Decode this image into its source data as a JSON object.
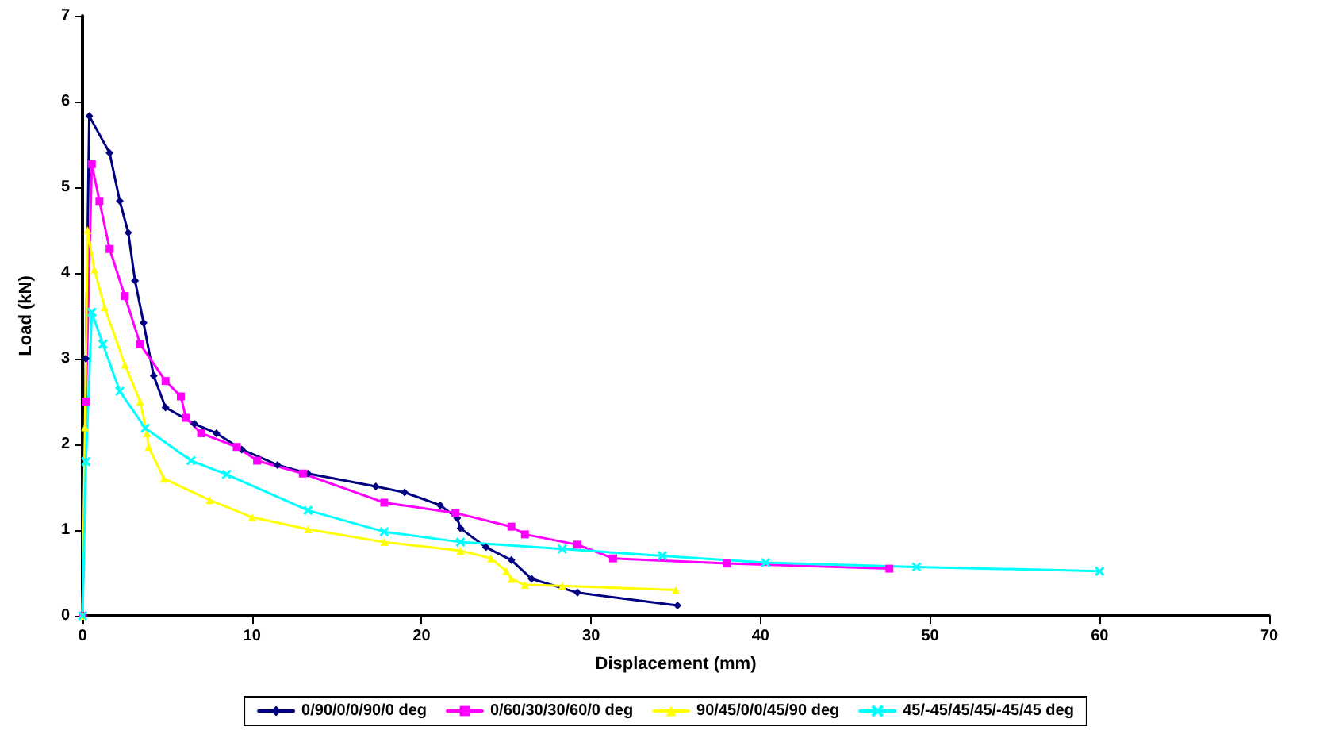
{
  "chart_data": {
    "type": "line",
    "xlabel": "Displacement (mm)",
    "ylabel": "Load (kN)",
    "xlim": [
      0,
      70
    ],
    "xticks": [
      0,
      10,
      20,
      30,
      40,
      50,
      60,
      70
    ],
    "ylim": [
      0,
      7
    ],
    "yticks": [
      0,
      1,
      2,
      3,
      4,
      5,
      6,
      7
    ],
    "grid": false,
    "legend": "bottom",
    "line_style": "solid",
    "series": [
      {
        "name": "0/90/0/0/90/0 deg",
        "color": "#000080",
        "marker": "diamond",
        "x": [
          0,
          0.2,
          0.4,
          1.6,
          2.2,
          2.7,
          3.1,
          3.6,
          4.2,
          4.9,
          6.6,
          7.9,
          9.4,
          11.5,
          13.3,
          17.3,
          19,
          21.1,
          22.1,
          22.3,
          23.8,
          25.3,
          26.5,
          29.2,
          35.1
        ],
        "values": [
          0,
          3,
          5.83,
          5.4,
          4.84,
          4.47,
          3.91,
          3.42,
          2.8,
          2.43,
          2.24,
          2.13,
          1.94,
          1.76,
          1.66,
          1.51,
          1.44,
          1.29,
          1.14,
          1.02,
          0.8,
          0.65,
          0.43,
          0.27,
          0.12
        ]
      },
      {
        "name": "0/60/30/30/60/0 deg",
        "color": "#ff00ff",
        "marker": "square",
        "x": [
          0,
          0.2,
          0.55,
          1,
          1.6,
          2.5,
          3.4,
          4.9,
          5.8,
          6.1,
          7,
          9.1,
          10.3,
          13,
          17.8,
          22,
          25.3,
          26.1,
          29.2,
          31.3,
          38,
          47.6
        ],
        "values": [
          0,
          2.5,
          5.27,
          4.84,
          4.28,
          3.73,
          3.17,
          2.74,
          2.56,
          2.31,
          2.13,
          1.97,
          1.81,
          1.66,
          1.32,
          1.2,
          1.04,
          0.95,
          0.83,
          0.67,
          0.61,
          0.55
        ]
      },
      {
        "name": "90/45/0/0/45/90 deg",
        "color": "#ffff00",
        "marker": "triangle",
        "x": [
          0,
          0.15,
          0.3,
          0.7,
          1.3,
          2.5,
          3.4,
          3.8,
          3.9,
          4.8,
          7.5,
          10,
          13.3,
          17.8,
          22.3,
          24.1,
          25,
          25.3,
          26.1,
          28.3,
          35
        ],
        "values": [
          0,
          2.2,
          4.5,
          4.04,
          3.6,
          2.93,
          2.5,
          2.13,
          1.97,
          1.6,
          1.35,
          1.15,
          1.01,
          0.86,
          0.76,
          0.67,
          0.52,
          0.43,
          0.36,
          0.35,
          0.3
        ]
      },
      {
        "name": "45/-45/45/45/-45/45 deg",
        "color": "#00ffff",
        "marker": "cross",
        "x": [
          0,
          0.2,
          0.55,
          1.2,
          2.2,
          3.7,
          6.4,
          8.5,
          13.3,
          17.8,
          22.3,
          28.3,
          34.2,
          40.3,
          49.2,
          60
        ],
        "values": [
          0,
          1.8,
          3.54,
          3.17,
          2.62,
          2.19,
          1.81,
          1.65,
          1.23,
          0.98,
          0.86,
          0.78,
          0.7,
          0.62,
          0.57,
          0.52
        ]
      }
    ]
  }
}
